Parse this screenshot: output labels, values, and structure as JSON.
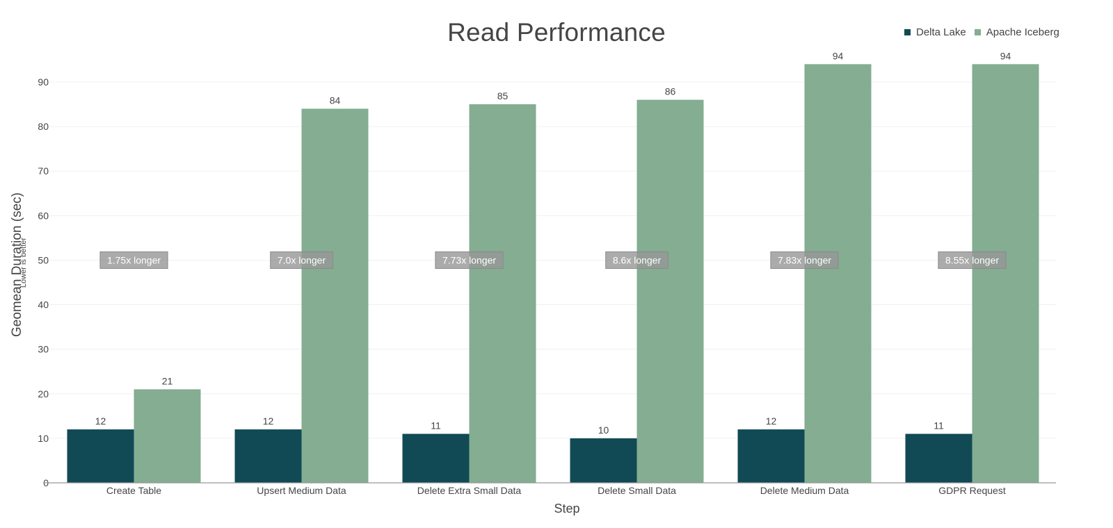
{
  "chart_data": {
    "type": "bar",
    "title": "Read Performance",
    "xlabel": "Step",
    "ylabel": "Geomean Duration (sec)",
    "ylabel_subtitle": "Lower is better",
    "ylim": [
      0,
      95
    ],
    "yticks": [
      0,
      10,
      20,
      30,
      40,
      50,
      60,
      70,
      80,
      90
    ],
    "grid": true,
    "legend_position": "top-right",
    "categories": [
      "Create Table",
      "Upsert Medium Data",
      "Delete Extra Small Data",
      "Delete Small Data",
      "Delete Medium Data",
      "GDPR Request"
    ],
    "series": [
      {
        "name": "Delta Lake",
        "color": "#114a55",
        "values": [
          12,
          12,
          11,
          10,
          12,
          11
        ]
      },
      {
        "name": "Apache Iceberg",
        "color": "#84ad92",
        "values": [
          21,
          84,
          85,
          86,
          94,
          94
        ]
      }
    ],
    "annotations": [
      {
        "category": "Create Table",
        "text": "1.75x longer",
        "y": 50
      },
      {
        "category": "Upsert Medium Data",
        "text": "7.0x longer",
        "y": 50
      },
      {
        "category": "Delete Extra Small Data",
        "text": "7.73x longer",
        "y": 50
      },
      {
        "category": "Delete Small Data",
        "text": "8.6x longer",
        "y": 50
      },
      {
        "category": "Delete Medium Data",
        "text": "7.83x longer",
        "y": 50
      },
      {
        "category": "GDPR Request",
        "text": "8.55x longer",
        "y": 50
      }
    ]
  }
}
